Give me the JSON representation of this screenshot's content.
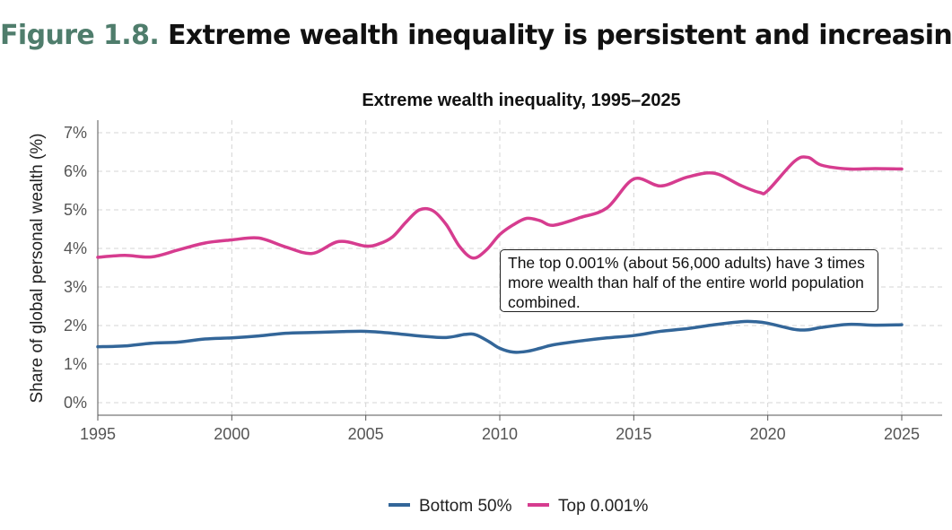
{
  "figure": {
    "label": "Figure 1.8.",
    "heading": "Extreme wealth inequality is persistent and increasing"
  },
  "colors": {
    "bottom50": "#336699",
    "top0001": "#d63c8f",
    "figure_label": "#4f7d6c"
  },
  "chart_data": {
    "type": "line",
    "title": "Extreme wealth inequality, 1995–2025",
    "xlabel": "",
    "ylabel": "Share of global personal wealth (%)",
    "xlim": [
      1995,
      2025
    ],
    "ylim": [
      0,
      7.3
    ],
    "x_ticks": [
      1995,
      2000,
      2005,
      2010,
      2015,
      2020,
      2025
    ],
    "x_tick_labels": [
      "1995",
      "2000",
      "2005",
      "2010",
      "2015",
      "2020",
      "2025"
    ],
    "y_ticks": [
      0,
      1,
      2,
      3,
      4,
      5,
      6,
      7
    ],
    "y_tick_labels": [
      "0%",
      "1%",
      "2%",
      "3%",
      "4%",
      "5%",
      "6%",
      "7%"
    ],
    "grid": true,
    "legend_position": "bottom",
    "series": [
      {
        "name": "Bottom 50%",
        "color": "#336699",
        "x": [
          1995,
          1996,
          1997,
          1998,
          1999,
          2000,
          2001,
          2002,
          2003,
          2004,
          2005,
          2006,
          2007,
          2008,
          2008.7,
          2009.1,
          2009.6,
          2010,
          2010.5,
          2011,
          2011.5,
          2012,
          2013,
          2014,
          2015,
          2016,
          2017,
          2018,
          2019,
          2019.5,
          2020,
          2021,
          2021.5,
          2022,
          2023,
          2024,
          2025
        ],
        "values": [
          1.45,
          1.47,
          1.54,
          1.57,
          1.65,
          1.68,
          1.73,
          1.8,
          1.82,
          1.84,
          1.85,
          1.8,
          1.73,
          1.69,
          1.77,
          1.76,
          1.58,
          1.41,
          1.31,
          1.33,
          1.41,
          1.5,
          1.6,
          1.68,
          1.74,
          1.85,
          1.92,
          2.02,
          2.1,
          2.1,
          2.06,
          1.9,
          1.89,
          1.95,
          2.03,
          2.01,
          2.02
        ]
      },
      {
        "name": "Top 0.001%",
        "color": "#d63c8f",
        "x": [
          1995,
          1996,
          1997,
          1998,
          1999,
          2000,
          2001,
          2002,
          2003,
          2004,
          2005,
          2005.5,
          2006,
          2006.5,
          2007,
          2007.5,
          2008,
          2008.5,
          2009,
          2009.5,
          2010,
          2010.5,
          2011,
          2011.5,
          2012,
          2013,
          2014,
          2015,
          2016,
          2017,
          2018,
          2019,
          2019.7,
          2020,
          2021,
          2021.5,
          2022,
          2023,
          2024,
          2025
        ],
        "values": [
          3.77,
          3.82,
          3.78,
          3.96,
          4.14,
          4.22,
          4.27,
          4.04,
          3.87,
          4.18,
          4.06,
          4.12,
          4.3,
          4.68,
          5.0,
          4.98,
          4.62,
          4.05,
          3.75,
          3.96,
          4.36,
          4.61,
          4.78,
          4.72,
          4.6,
          4.8,
          5.05,
          5.8,
          5.62,
          5.85,
          5.95,
          5.63,
          5.45,
          5.5,
          6.26,
          6.36,
          6.16,
          6.06,
          6.07,
          6.06
        ]
      }
    ],
    "annotation": {
      "lines": [
        "The top 0.001% (about 56,000 adults) have 3 times",
        "more wealth than half of the entire world population",
        "combined."
      ]
    }
  }
}
